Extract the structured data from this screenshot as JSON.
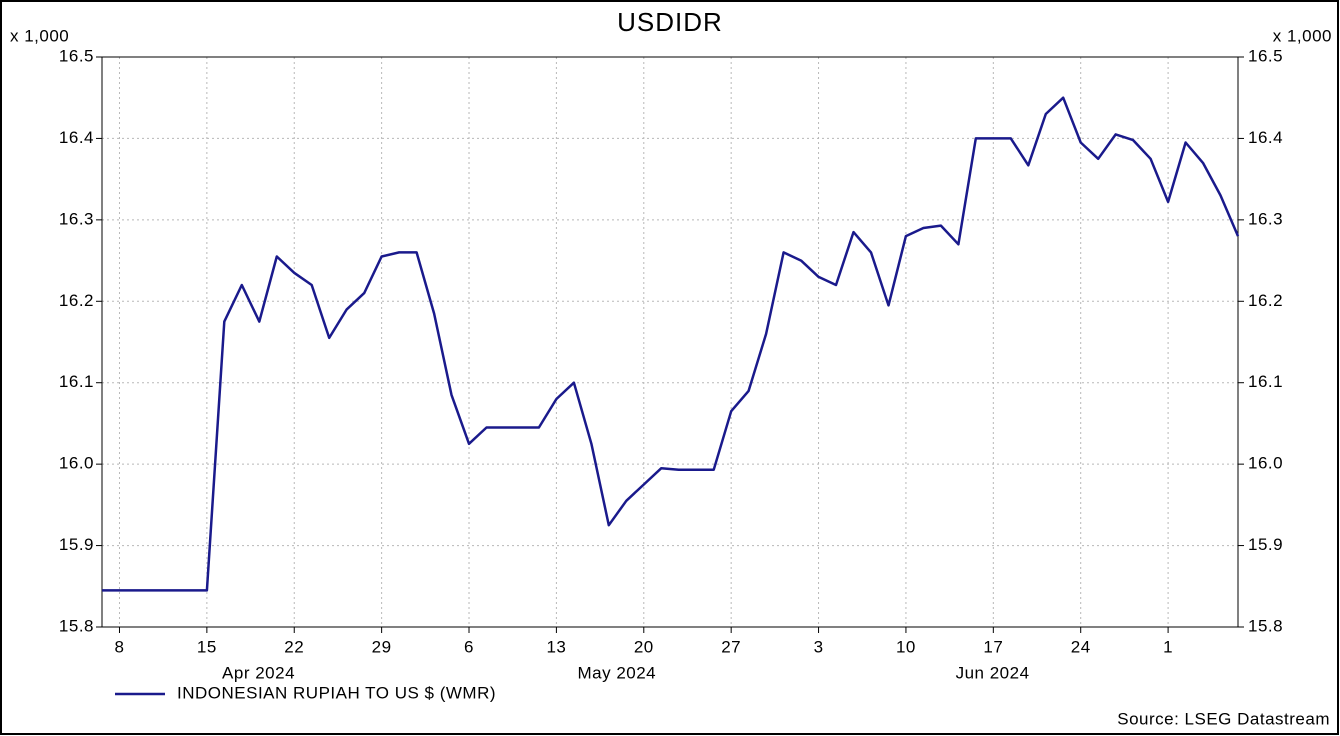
{
  "chart_data": {
    "type": "line",
    "title": "USDIDR",
    "y_unit": "x 1,000",
    "source": "Source: LSEG Datastream",
    "x": [
      "2024-04-05",
      "2024-04-08",
      "2024-04-09",
      "2024-04-10",
      "2024-04-11",
      "2024-04-12",
      "2024-04-15",
      "2024-04-16",
      "2024-04-17",
      "2024-04-18",
      "2024-04-19",
      "2024-04-22",
      "2024-04-23",
      "2024-04-24",
      "2024-04-25",
      "2024-04-26",
      "2024-04-29",
      "2024-04-30",
      "2024-05-01",
      "2024-05-02",
      "2024-05-03",
      "2024-05-06",
      "2024-05-07",
      "2024-05-08",
      "2024-05-09",
      "2024-05-10",
      "2024-05-13",
      "2024-05-14",
      "2024-05-15",
      "2024-05-16",
      "2024-05-17",
      "2024-05-20",
      "2024-05-21",
      "2024-05-22",
      "2024-05-23",
      "2024-05-24",
      "2024-05-27",
      "2024-05-28",
      "2024-05-29",
      "2024-05-30",
      "2024-05-31",
      "2024-06-03",
      "2024-06-04",
      "2024-06-05",
      "2024-06-06",
      "2024-06-07",
      "2024-06-10",
      "2024-06-11",
      "2024-06-12",
      "2024-06-13",
      "2024-06-14",
      "2024-06-17",
      "2024-06-18",
      "2024-06-19",
      "2024-06-20",
      "2024-06-21",
      "2024-06-24",
      "2024-06-25",
      "2024-06-26",
      "2024-06-27",
      "2024-06-28",
      "2024-07-01",
      "2024-07-02",
      "2024-07-03",
      "2024-07-04",
      "2024-07-05"
    ],
    "series": [
      {
        "name": "INDONESIAN RUPIAH TO US $ (WMR)",
        "color": "#1a1a8c",
        "values": [
          15.845,
          15.845,
          15.845,
          15.845,
          15.845,
          15.845,
          15.845,
          16.175,
          16.22,
          16.175,
          16.255,
          16.235,
          16.22,
          16.155,
          16.19,
          16.21,
          16.255,
          16.26,
          16.26,
          16.185,
          16.085,
          16.025,
          16.045,
          16.045,
          16.045,
          16.045,
          16.08,
          16.1,
          16.025,
          15.925,
          15.955,
          15.975,
          15.995,
          15.993,
          15.993,
          15.993,
          16.065,
          16.09,
          16.16,
          16.26,
          16.25,
          16.23,
          16.22,
          16.285,
          16.26,
          16.195,
          16.28,
          16.29,
          16.293,
          16.27,
          16.4,
          16.4,
          16.4,
          16.367,
          16.43,
          16.45,
          16.395,
          16.375,
          16.405,
          16.398,
          16.375,
          16.322,
          16.395,
          16.37,
          16.33,
          16.28
        ]
      }
    ],
    "xlim": [
      "2024-04-05",
      "2024-07-05"
    ],
    "xticks": [
      {
        "value": "2024-04-08",
        "label": "8"
      },
      {
        "value": "2024-04-15",
        "label": "15"
      },
      {
        "value": "2024-04-22",
        "label": "22"
      },
      {
        "value": "2024-04-29",
        "label": "29"
      },
      {
        "value": "2024-05-06",
        "label": "6"
      },
      {
        "value": "2024-05-13",
        "label": "13"
      },
      {
        "value": "2024-05-20",
        "label": "20"
      },
      {
        "value": "2024-05-27",
        "label": "27"
      },
      {
        "value": "2024-06-03",
        "label": "3"
      },
      {
        "value": "2024-06-10",
        "label": "10"
      },
      {
        "value": "2024-06-17",
        "label": "17"
      },
      {
        "value": "2024-06-24",
        "label": "24"
      },
      {
        "value": "2024-07-01",
        "label": "1"
      }
    ],
    "month_labels": [
      {
        "value": "2024-04",
        "label": "Apr 2024"
      },
      {
        "value": "2024-05",
        "label": "May 2024"
      },
      {
        "value": "2024-06",
        "label": "Jun 2024"
      }
    ],
    "ylim": [
      15.8,
      16.5
    ],
    "yticks": [
      15.8,
      15.9,
      {
        "value": 16,
        "label": "16.0"
      },
      16.1,
      16.2,
      16.3,
      16.4,
      16.5
    ],
    "y2lim": [
      15.8,
      16.5
    ],
    "y2ticks": [
      15.8,
      15.9,
      {
        "value": 16,
        "label": "16.0"
      },
      16.1,
      16.2,
      16.3,
      16.4,
      16.5
    ],
    "grid": true,
    "legend": "bottom-left"
  }
}
